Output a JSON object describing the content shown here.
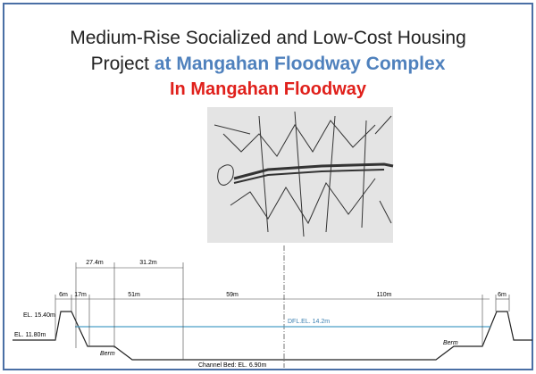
{
  "title": {
    "line1": "Medium-Rise Socialized and Low-Cost Housing",
    "line2_start": "Project",
    "line2_highlight": "at Mangahan Floodway Complex",
    "subtitle": "In Mangahan Floodway"
  },
  "cross_section": {
    "upper_dimensions": [
      "27.4m",
      "31.2m"
    ],
    "lower_dimensions": [
      "6m",
      "17m",
      "51m",
      "59m",
      "110m",
      "6m"
    ],
    "elevations": {
      "top_bank": "EL. 15.40m",
      "ground": "EL. 11.80m",
      "water_level": "DFL.EL. 14.2m",
      "channel_bed": "Channel Bed: EL. 6.90m"
    },
    "berm_labels": [
      "Berm",
      "Berm"
    ]
  }
}
